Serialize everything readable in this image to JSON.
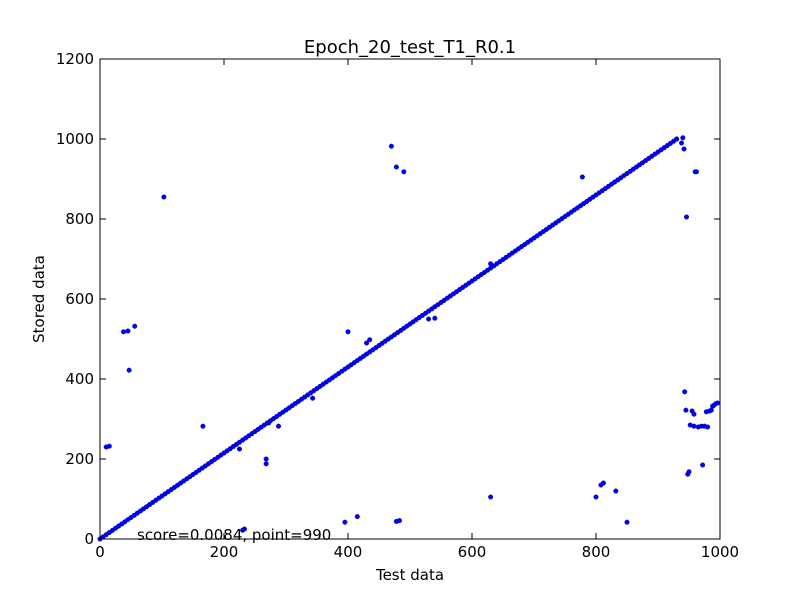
{
  "chart_data": {
    "type": "scatter",
    "title": "Epoch_20_test_T1_R0.1",
    "xlabel": "Test data",
    "ylabel": "Stored data",
    "xlim": [
      0,
      1000
    ],
    "ylim": [
      0,
      1200
    ],
    "xticks": [
      "0",
      "200",
      "400",
      "600",
      "800",
      "1000"
    ],
    "yticks": [
      "0",
      "200",
      "400",
      "600",
      "800",
      "1000",
      "1200"
    ],
    "annotation": "score=0.0084, point=990",
    "grid": false,
    "marker_color": "#0000ff",
    "marker_edge_color": "#00007f",
    "diagonal": {
      "from": 0,
      "to": 930,
      "step": 5,
      "slope": 1.075
    },
    "outliers": [
      [
        10,
        230
      ],
      [
        15,
        232
      ],
      [
        38,
        518
      ],
      [
        45,
        520
      ],
      [
        47,
        422
      ],
      [
        56,
        532
      ],
      [
        103,
        855
      ],
      [
        166,
        282
      ],
      [
        225,
        225
      ],
      [
        230,
        22
      ],
      [
        233,
        25
      ],
      [
        268,
        200
      ],
      [
        268,
        188
      ],
      [
        272,
        290
      ],
      [
        288,
        282
      ],
      [
        343,
        352
      ],
      [
        395,
        42
      ],
      [
        400,
        518
      ],
      [
        415,
        56
      ],
      [
        430,
        490
      ],
      [
        435,
        498
      ],
      [
        470,
        982
      ],
      [
        478,
        930
      ],
      [
        478,
        44
      ],
      [
        483,
        46
      ],
      [
        490,
        918
      ],
      [
        530,
        550
      ],
      [
        540,
        552
      ],
      [
        630,
        105
      ],
      [
        630,
        688
      ],
      [
        778,
        905
      ],
      [
        800,
        105
      ],
      [
        808,
        135
      ],
      [
        812,
        140
      ],
      [
        832,
        120
      ],
      [
        850,
        42
      ],
      [
        930,
        1000
      ],
      [
        938,
        990
      ],
      [
        940,
        1003
      ],
      [
        942,
        975
      ],
      [
        943,
        368
      ],
      [
        945,
        322
      ],
      [
        946,
        805
      ],
      [
        948,
        162
      ],
      [
        950,
        168
      ],
      [
        952,
        285
      ],
      [
        955,
        320
      ],
      [
        958,
        312
      ],
      [
        958,
        282
      ],
      [
        960,
        918
      ],
      [
        962,
        918
      ],
      [
        965,
        280
      ],
      [
        970,
        282
      ],
      [
        972,
        185
      ],
      [
        975,
        282
      ],
      [
        978,
        318
      ],
      [
        980,
        280
      ],
      [
        983,
        320
      ],
      [
        986,
        322
      ],
      [
        988,
        332
      ],
      [
        990,
        334
      ],
      [
        993,
        338
      ],
      [
        996,
        340
      ]
    ]
  }
}
